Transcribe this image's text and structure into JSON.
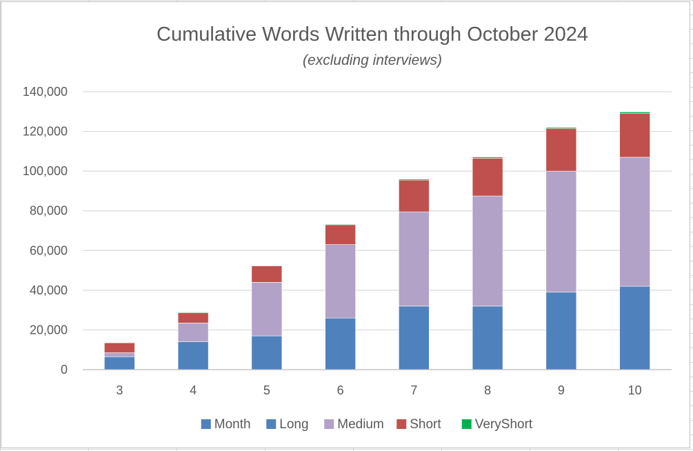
{
  "chart_data": {
    "type": "bar",
    "stacked": true,
    "title": "Cumulative Words Written through October 2024",
    "subtitle": "(excluding interviews)",
    "xlabel": "",
    "ylabel": "",
    "categories": [
      "3",
      "4",
      "5",
      "6",
      "7",
      "8",
      "9",
      "10"
    ],
    "ylim": [
      0,
      140000
    ],
    "yticks": [
      0,
      20000,
      40000,
      60000,
      80000,
      100000,
      120000,
      140000
    ],
    "ytick_labels": [
      "0",
      "20,000",
      "40,000",
      "60,000",
      "80,000",
      "100,000",
      "120,000",
      "140,000"
    ],
    "grid": true,
    "legend_position": "bottom",
    "series": [
      {
        "name": "Month",
        "color": "#4f81bd",
        "values": [
          0,
          0,
          0,
          0,
          0,
          0,
          0,
          0
        ]
      },
      {
        "name": "Long",
        "color": "#4f81bd",
        "values": [
          6500,
          14000,
          17000,
          26000,
          32000,
          32000,
          39000,
          42000
        ]
      },
      {
        "name": "Medium",
        "color": "#b2a2c7",
        "values": [
          2000,
          9500,
          27000,
          37000,
          47500,
          55500,
          61000,
          65000
        ]
      },
      {
        "name": "Short",
        "color": "#c0504d",
        "values": [
          5000,
          5200,
          8300,
          10000,
          16000,
          19000,
          21500,
          22000
        ]
      },
      {
        "name": "VeryShort",
        "color": "#00b050",
        "values": [
          0,
          300,
          200,
          300,
          500,
          600,
          500,
          800
        ]
      }
    ]
  }
}
